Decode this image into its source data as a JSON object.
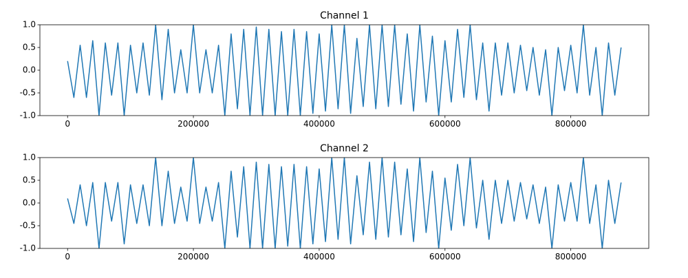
{
  "chart_data": [
    {
      "type": "line",
      "title": "Channel 1",
      "x": [
        0,
        10000,
        20000,
        30000,
        40000,
        50000,
        60000,
        70000,
        80000,
        90000,
        100000,
        110000,
        120000,
        130000,
        140000,
        150000,
        160000,
        170000,
        180000,
        190000,
        200000,
        210000,
        220000,
        230000,
        240000,
        250000,
        260000,
        270000,
        280000,
        290000,
        300000,
        310000,
        320000,
        330000,
        340000,
        350000,
        360000,
        370000,
        380000,
        390000,
        400000,
        410000,
        420000,
        430000,
        440000,
        450000,
        460000,
        470000,
        480000,
        490000,
        500000,
        510000,
        520000,
        530000,
        540000,
        550000,
        560000,
        570000,
        580000,
        590000,
        600000,
        610000,
        620000,
        630000,
        640000,
        650000,
        660000,
        670000,
        680000,
        690000,
        700000,
        710000,
        720000,
        730000,
        740000,
        750000,
        760000,
        770000,
        780000,
        790000,
        800000,
        810000,
        820000,
        830000,
        840000,
        850000,
        860000,
        870000,
        880000
      ],
      "series": [
        {
          "color": "#1f77b4",
          "values": [
            0.2,
            -0.6,
            0.55,
            -0.6,
            0.65,
            -1,
            0.6,
            -0.55,
            0.6,
            -1,
            0.55,
            -0.5,
            0.6,
            -0.55,
            1,
            -0.65,
            0.9,
            -0.5,
            0.45,
            -0.5,
            1,
            -0.5,
            0.45,
            -0.5,
            0.55,
            -1,
            0.8,
            -0.85,
            0.9,
            -1,
            0.95,
            -1,
            0.9,
            -1,
            0.85,
            -1,
            0.9,
            -1,
            0.85,
            -0.95,
            0.8,
            -0.9,
            1,
            -0.85,
            1,
            -0.95,
            0.7,
            -0.8,
            1,
            -0.85,
            1,
            -0.8,
            1,
            -0.75,
            0.8,
            -0.9,
            1,
            -0.7,
            0.75,
            -1,
            0.65,
            -0.7,
            0.9,
            -0.6,
            1,
            -0.65,
            0.6,
            -0.9,
            0.6,
            -0.55,
            0.6,
            -0.5,
            0.55,
            -0.45,
            0.5,
            -0.55,
            0.45,
            -1,
            0.5,
            -0.45,
            0.55,
            -0.5,
            1,
            -0.55,
            0.5,
            -1,
            0.6,
            -0.55,
            0.5
          ]
        }
      ],
      "xlim": [
        -44000,
        924000
      ],
      "xticks": [
        0,
        200000,
        400000,
        600000,
        800000
      ],
      "ylim": [
        -1,
        1
      ],
      "yticks": [
        {
          "value": -1,
          "label": "-1.0"
        },
        {
          "value": -0.5,
          "label": "-0.5"
        },
        {
          "value": 0,
          "label": "0.0"
        },
        {
          "value": 0.5,
          "label": "0.5"
        },
        {
          "value": 1,
          "label": "1.0"
        }
      ]
    },
    {
      "type": "line",
      "title": "Channel 2",
      "x": [
        0,
        10000,
        20000,
        30000,
        40000,
        50000,
        60000,
        70000,
        80000,
        90000,
        100000,
        110000,
        120000,
        130000,
        140000,
        150000,
        160000,
        170000,
        180000,
        190000,
        200000,
        210000,
        220000,
        230000,
        240000,
        250000,
        260000,
        270000,
        280000,
        290000,
        300000,
        310000,
        320000,
        330000,
        340000,
        350000,
        360000,
        370000,
        380000,
        390000,
        400000,
        410000,
        420000,
        430000,
        440000,
        450000,
        460000,
        470000,
        480000,
        490000,
        500000,
        510000,
        520000,
        530000,
        540000,
        550000,
        560000,
        570000,
        580000,
        590000,
        600000,
        610000,
        620000,
        630000,
        640000,
        650000,
        660000,
        670000,
        680000,
        690000,
        700000,
        710000,
        720000,
        730000,
        740000,
        750000,
        760000,
        770000,
        780000,
        790000,
        800000,
        810000,
        820000,
        830000,
        840000,
        850000,
        860000,
        870000,
        880000
      ],
      "series": [
        {
          "color": "#1f77b4",
          "values": [
            0.1,
            -0.45,
            0.4,
            -0.5,
            0.45,
            -1,
            0.45,
            -0.4,
            0.45,
            -0.9,
            0.4,
            -0.45,
            0.4,
            -0.5,
            1,
            -0.5,
            0.7,
            -0.45,
            0.35,
            -0.4,
            1,
            -0.45,
            0.35,
            -0.4,
            0.45,
            -1,
            0.7,
            -0.75,
            0.8,
            -1,
            0.9,
            -1,
            0.85,
            -1,
            0.8,
            -0.95,
            0.85,
            -1,
            0.8,
            -0.9,
            0.75,
            -0.85,
            1,
            -0.8,
            1,
            -0.9,
            0.6,
            -0.7,
            0.9,
            -0.8,
            1,
            -0.75,
            0.9,
            -0.7,
            0.75,
            -0.85,
            1,
            -0.65,
            0.7,
            -1,
            0.55,
            -0.6,
            0.85,
            -0.5,
            1,
            -0.55,
            0.5,
            -0.8,
            0.5,
            -0.45,
            0.5,
            -0.4,
            0.45,
            -0.35,
            0.4,
            -0.45,
            0.35,
            -1,
            0.4,
            -0.4,
            0.45,
            -0.4,
            1,
            -0.45,
            0.4,
            -1,
            0.5,
            -0.45,
            0.45
          ]
        }
      ],
      "xlim": [
        -44000,
        924000
      ],
      "xticks": [
        0,
        200000,
        400000,
        600000,
        800000
      ],
      "ylim": [
        -1,
        1
      ],
      "yticks": [
        {
          "value": -1,
          "label": "-1.0"
        },
        {
          "value": -0.5,
          "label": "-0.5"
        },
        {
          "value": 0,
          "label": "0.0"
        },
        {
          "value": 0.5,
          "label": "0.5"
        },
        {
          "value": 1,
          "label": "1.0"
        }
      ]
    }
  ]
}
